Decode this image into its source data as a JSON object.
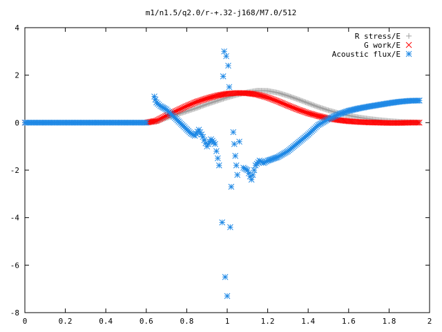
{
  "chart_data": {
    "type": "scatter",
    "title": "m1/n1.5/q2.0/r-+.32-j168/M7.0/512",
    "xlabel": "",
    "ylabel": "",
    "xlim": [
      0,
      2
    ],
    "ylim": [
      -8,
      4
    ],
    "xticks": [
      "0",
      "0.2",
      "0.4",
      "0.6",
      "0.8",
      "1",
      "1.2",
      "1.4",
      "1.6",
      "1.8",
      "2"
    ],
    "yticks": [
      "4",
      "2",
      "0",
      "-2",
      "-4",
      "-6",
      "-8"
    ],
    "grid": false,
    "legend_position": "top-right",
    "series": [
      {
        "name": "R stress/E",
        "marker": "plus",
        "color": "#a0a0a0",
        "x": [
          0.0,
          0.6,
          0.65,
          0.7,
          0.75,
          0.8,
          0.85,
          0.9,
          0.95,
          1.0,
          1.05,
          1.1,
          1.15,
          1.2,
          1.25,
          1.3,
          1.35,
          1.4,
          1.45,
          1.5,
          1.55,
          1.6,
          1.65,
          1.7,
          1.75,
          1.8,
          1.85,
          1.9,
          1.95
        ],
        "y": [
          0.0,
          0.0,
          0.04,
          0.2,
          0.34,
          0.48,
          0.62,
          0.78,
          0.92,
          1.06,
          1.18,
          1.28,
          1.35,
          1.34,
          1.26,
          1.13,
          0.98,
          0.82,
          0.66,
          0.52,
          0.4,
          0.3,
          0.22,
          0.16,
          0.11,
          0.07,
          0.04,
          0.02,
          0.01
        ]
      },
      {
        "name": "G work/E",
        "marker": "cross",
        "color": "#ff0000",
        "x": [
          0.0,
          0.6,
          0.65,
          0.7,
          0.75,
          0.8,
          0.85,
          0.9,
          0.95,
          1.0,
          1.05,
          1.1,
          1.15,
          1.2,
          1.25,
          1.3,
          1.35,
          1.4,
          1.45,
          1.5,
          1.55,
          1.6,
          1.65,
          1.7,
          1.75,
          1.8,
          1.85,
          1.9,
          1.95
        ],
        "y": [
          0.0,
          0.0,
          0.08,
          0.3,
          0.5,
          0.7,
          0.88,
          1.02,
          1.14,
          1.22,
          1.25,
          1.24,
          1.18,
          1.06,
          0.9,
          0.72,
          0.55,
          0.4,
          0.28,
          0.18,
          0.11,
          0.06,
          0.03,
          0.01,
          0.0,
          -0.01,
          -0.01,
          0.0,
          0.0
        ]
      },
      {
        "name": "Acoustic flux/E",
        "marker": "star",
        "color": "#1e88e5",
        "x": [
          0.0,
          0.05,
          0.1,
          0.15,
          0.2,
          0.25,
          0.3,
          0.35,
          0.4,
          0.45,
          0.5,
          0.55,
          0.6,
          0.64,
          0.65,
          0.67,
          0.7,
          0.73,
          0.76,
          0.79,
          0.82,
          0.84,
          0.86,
          0.88,
          0.9,
          0.92,
          0.94,
          0.96,
          0.975,
          0.98,
          0.985,
          0.99,
          0.995,
          1.0,
          1.005,
          1.01,
          1.015,
          1.02,
          1.03,
          1.04,
          1.05,
          1.06,
          1.08,
          1.1,
          1.12,
          1.14,
          1.16,
          1.18,
          1.2,
          1.25,
          1.3,
          1.35,
          1.4,
          1.45,
          1.5,
          1.55,
          1.6,
          1.65,
          1.7,
          1.75,
          1.8,
          1.85,
          1.9,
          1.95
        ],
        "y": [
          0.0,
          0.0,
          0.0,
          0.0,
          0.0,
          0.0,
          0.0,
          0.0,
          0.0,
          0.0,
          0.0,
          0.0,
          0.0,
          1.1,
          0.85,
          0.7,
          0.55,
          0.3,
          0.05,
          -0.2,
          -0.45,
          -0.55,
          -0.3,
          -0.6,
          -1.0,
          -0.7,
          -0.9,
          -1.8,
          -4.2,
          1.95,
          3.0,
          -6.5,
          2.8,
          -7.3,
          2.4,
          1.5,
          -4.4,
          -2.7,
          -0.4,
          -1.4,
          -2.2,
          -0.8,
          -1.9,
          -2.0,
          -2.4,
          -1.8,
          -1.6,
          -1.7,
          -1.6,
          -1.45,
          -1.2,
          -0.85,
          -0.5,
          -0.1,
          0.15,
          0.35,
          0.5,
          0.6,
          0.68,
          0.75,
          0.82,
          0.88,
          0.92,
          0.93
        ]
      }
    ]
  }
}
